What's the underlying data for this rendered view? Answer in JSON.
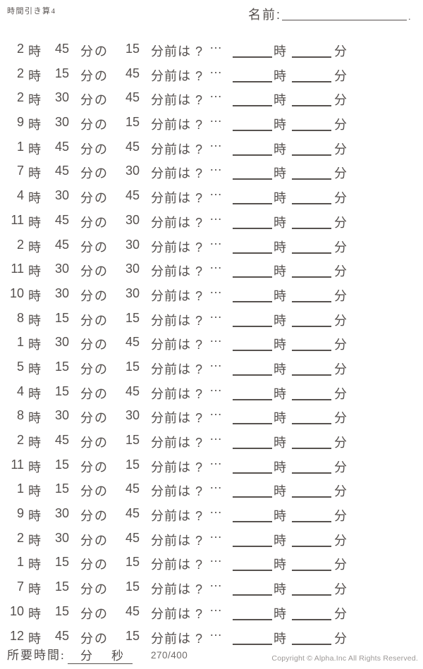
{
  "header": {
    "title": "時間引き算4",
    "name_label": "名前:",
    "name_line_period": "."
  },
  "labels": {
    "hour_unit": "時",
    "minute_unit_possessive": "分の",
    "before_suffix": "分前は ?",
    "ellipsis": "…",
    "answer_hour_unit": "時",
    "answer_minute_unit": "分"
  },
  "problems": [
    {
      "hour": "2",
      "minute": "45",
      "subtract": "15"
    },
    {
      "hour": "2",
      "minute": "15",
      "subtract": "45"
    },
    {
      "hour": "2",
      "minute": "30",
      "subtract": "45"
    },
    {
      "hour": "9",
      "minute": "30",
      "subtract": "15"
    },
    {
      "hour": "1",
      "minute": "45",
      "subtract": "45"
    },
    {
      "hour": "7",
      "minute": "45",
      "subtract": "30"
    },
    {
      "hour": "4",
      "minute": "30",
      "subtract": "45"
    },
    {
      "hour": "11",
      "minute": "45",
      "subtract": "30"
    },
    {
      "hour": "2",
      "minute": "45",
      "subtract": "30"
    },
    {
      "hour": "11",
      "minute": "30",
      "subtract": "30"
    },
    {
      "hour": "10",
      "minute": "30",
      "subtract": "30"
    },
    {
      "hour": "8",
      "minute": "15",
      "subtract": "15"
    },
    {
      "hour": "1",
      "minute": "30",
      "subtract": "45"
    },
    {
      "hour": "5",
      "minute": "15",
      "subtract": "15"
    },
    {
      "hour": "4",
      "minute": "15",
      "subtract": "45"
    },
    {
      "hour": "8",
      "minute": "30",
      "subtract": "30"
    },
    {
      "hour": "2",
      "minute": "45",
      "subtract": "15"
    },
    {
      "hour": "11",
      "minute": "15",
      "subtract": "15"
    },
    {
      "hour": "1",
      "minute": "15",
      "subtract": "45"
    },
    {
      "hour": "9",
      "minute": "30",
      "subtract": "45"
    },
    {
      "hour": "2",
      "minute": "30",
      "subtract": "45"
    },
    {
      "hour": "1",
      "minute": "15",
      "subtract": "15"
    },
    {
      "hour": "7",
      "minute": "15",
      "subtract": "15"
    },
    {
      "hour": "10",
      "minute": "15",
      "subtract": "45"
    },
    {
      "hour": "12",
      "minute": "45",
      "subtract": "15"
    }
  ],
  "footer": {
    "elapsed_label": "所要時間:",
    "minutes_unit": "分",
    "seconds_unit": "秒",
    "progress": "270/400",
    "copyright": "Copyright ©  Alpha.Inc All Rights Reserved."
  }
}
